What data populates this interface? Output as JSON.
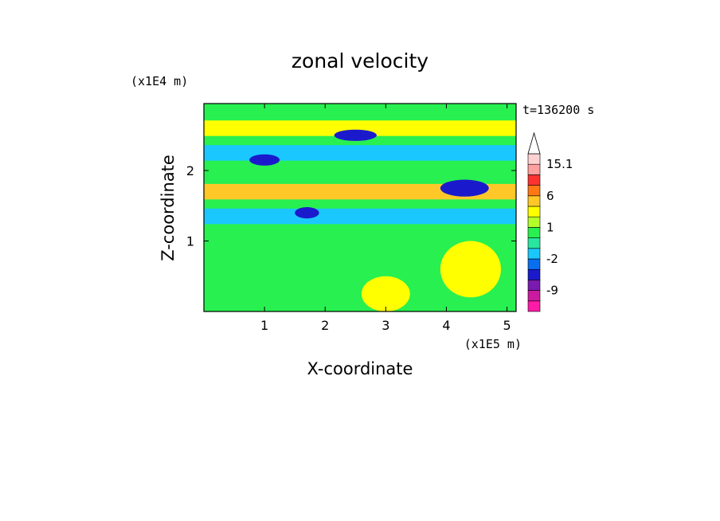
{
  "chart_data": {
    "type": "heatmap",
    "title": "zonal velocity",
    "xlabel": "X-coordinate",
    "ylabel": "Z-coordinate",
    "x_unit": "(x1E5 m)",
    "y_unit": "(x1E4 m)",
    "time_label": "t=136200 s",
    "xlim": [
      0,
      5.15
    ],
    "ylim": [
      0,
      2.95
    ],
    "x_ticks": [
      1,
      2,
      3,
      4,
      5
    ],
    "y_ticks": [
      1,
      2
    ],
    "colorbar": {
      "levels": [
        -15,
        -12,
        -9,
        -6,
        -3,
        -2,
        -1,
        0,
        1,
        2,
        3,
        6,
        9,
        12,
        15.1
      ],
      "colors": [
        "#ff1aa8",
        "#cc1aa0",
        "#7a1ab0",
        "#1a1acc",
        "#0a6ef0",
        "#1ac8ff",
        "#28e6a0",
        "#28f050",
        "#b4ff28",
        "#ffff00",
        "#ffc828",
        "#ff7814",
        "#ff3232",
        "#ffa0a0",
        "#ffd2d2"
      ],
      "labels": [
        "15.1",
        "6",
        "1",
        "-2",
        "-9"
      ],
      "extend": "max"
    },
    "field_features": [
      {
        "type": "background",
        "value": 0
      },
      {
        "type": "band",
        "z_center": 2.6,
        "value": 2
      },
      {
        "type": "band",
        "z_center": 2.25,
        "value": -2
      },
      {
        "type": "band",
        "z_center": 1.7,
        "value": 3
      },
      {
        "type": "band",
        "z_center": 1.35,
        "value": -2
      },
      {
        "type": "blob",
        "x": 2.5,
        "z": 2.5,
        "rx": 0.35,
        "rz": 0.08,
        "value": -6
      },
      {
        "type": "blob",
        "x": 1.0,
        "z": 2.15,
        "rx": 0.25,
        "rz": 0.08,
        "value": -6
      },
      {
        "type": "blob",
        "x": 4.3,
        "z": 1.75,
        "rx": 0.4,
        "rz": 0.12,
        "value": -6
      },
      {
        "type": "blob",
        "x": 1.7,
        "z": 1.4,
        "rx": 0.2,
        "rz": 0.08,
        "value": -6
      },
      {
        "type": "blob",
        "x": 3.5,
        "z": 1.35,
        "rx": 0.35,
        "rz": 0.1,
        "value": -2
      },
      {
        "type": "blob",
        "x": 3.0,
        "z": 0.25,
        "rx": 0.4,
        "rz": 0.25,
        "value": 2
      },
      {
        "type": "blob",
        "x": 4.4,
        "z": 0.6,
        "rx": 0.5,
        "rz": 0.4,
        "value": 2
      }
    ]
  }
}
